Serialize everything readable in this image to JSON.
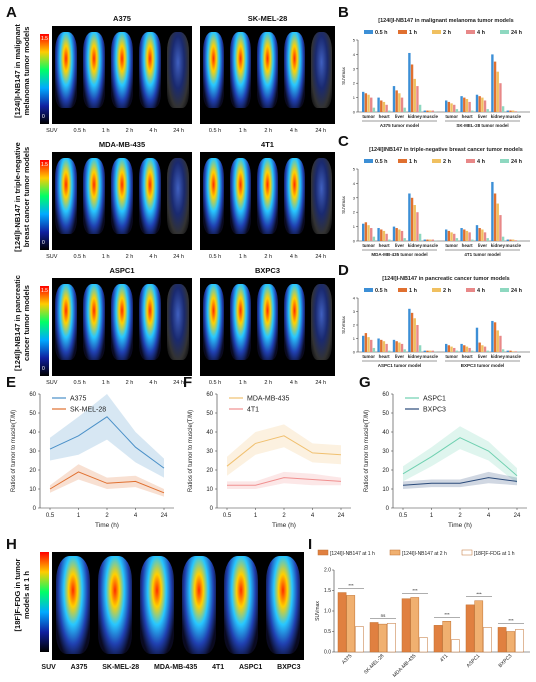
{
  "panels": {
    "A": "A",
    "B": "B",
    "C": "C",
    "D": "D",
    "E": "E",
    "F": "F",
    "G": "G",
    "H": "H",
    "I": "I"
  },
  "pet": {
    "time_labels": [
      "SUV",
      "0.5 h",
      "1 h",
      "2 h",
      "4 h",
      "24 h"
    ],
    "colorbar_max": "1.5",
    "colorbar_min": "0",
    "rows": [
      {
        "vlabel": "[124I]I-NB147 in malignant melanoma tumor models",
        "left": "A375",
        "right": "SK-MEL-28"
      },
      {
        "vlabel": "[124I]I-NB147 in triple-negative breast cancer tumor models",
        "left": "MDA-MB-435",
        "right": "4T1"
      },
      {
        "vlabel": "[124I]I-NB147 in pancreatic cancer tumor models",
        "left": "ASPC1",
        "right": "BXPC3"
      }
    ],
    "h_vlabel": "[18F]F-FDG in tumor models at 1 h",
    "h_labels": [
      "SUV",
      "A375",
      "SK-MEL-28",
      "MDA-MB-435",
      "4T1",
      "ASPC1",
      "BXPC3"
    ]
  },
  "colors": {
    "t05": "#3c8fd6",
    "t1": "#e07030",
    "t2": "#f0c060",
    "t4": "#e88888",
    "t24": "#8ed8c0",
    "navy": "#2a4a7a"
  },
  "chart_data": [
    {
      "id": "B",
      "type": "bar",
      "title": "[124I]I-NB147 in malignant melanoma tumor models",
      "ylabel": "SUVmax",
      "ylim": [
        0,
        5
      ],
      "categories": [
        "tumor",
        "heart",
        "liver",
        "kidney",
        "muscle"
      ],
      "groups": [
        "A375 tumor model",
        "SK-MEL-28 tumor model"
      ],
      "series": [
        {
          "name": "0.5 h",
          "values": [
            [
              1.4,
              1.0,
              1.8,
              4.1,
              0.1
            ],
            [
              0.8,
              1.1,
              1.2,
              4.0,
              0.1
            ]
          ]
        },
        {
          "name": "1 h",
          "values": [
            [
              1.3,
              0.8,
              1.5,
              3.3,
              0.1
            ],
            [
              0.7,
              1.0,
              1.1,
              3.5,
              0.1
            ]
          ]
        },
        {
          "name": "2 h",
          "values": [
            [
              1.2,
              0.7,
              1.3,
              2.3,
              0.1
            ],
            [
              0.6,
              0.9,
              1.0,
              2.8,
              0.1
            ]
          ]
        },
        {
          "name": "4 h",
          "values": [
            [
              1.0,
              0.5,
              1.0,
              1.8,
              0.1
            ],
            [
              0.5,
              0.7,
              0.8,
              2.0,
              0.05
            ]
          ]
        },
        {
          "name": "24 h",
          "values": [
            [
              0.3,
              0.1,
              0.3,
              0.5,
              0.02
            ],
            [
              0.2,
              0.1,
              0.2,
              0.4,
              0.02
            ]
          ]
        }
      ]
    },
    {
      "id": "C",
      "type": "bar",
      "title": "[124I]INB147 in triple-negative breast cancer tumor models",
      "ylabel": "SUVmax",
      "ylim": [
        0,
        5
      ],
      "categories": [
        "tumor",
        "heart",
        "liver",
        "kidney",
        "muscle"
      ],
      "groups": [
        "MDA-MB-435 tumor model",
        "4T1 tumor model"
      ],
      "series": [
        {
          "name": "0.5 h",
          "values": [
            [
              1.2,
              0.9,
              1.0,
              3.3,
              0.1
            ],
            [
              0.8,
              0.9,
              1.1,
              4.1,
              0.1
            ]
          ]
        },
        {
          "name": "1 h",
          "values": [
            [
              1.3,
              0.8,
              0.9,
              3.0,
              0.1
            ],
            [
              0.7,
              0.8,
              0.9,
              3.3,
              0.1
            ]
          ]
        },
        {
          "name": "2 h",
          "values": [
            [
              1.1,
              0.7,
              0.8,
              2.5,
              0.1
            ],
            [
              0.6,
              0.7,
              0.8,
              2.6,
              0.1
            ]
          ]
        },
        {
          "name": "4 h",
          "values": [
            [
              0.9,
              0.5,
              0.7,
              2.0,
              0.1
            ],
            [
              0.5,
              0.6,
              0.6,
              1.8,
              0.05
            ]
          ]
        },
        {
          "name": "24 h",
          "values": [
            [
              0.3,
              0.1,
              0.2,
              0.5,
              0.02
            ],
            [
              0.2,
              0.1,
              0.2,
              0.3,
              0.02
            ]
          ]
        }
      ]
    },
    {
      "id": "D",
      "type": "bar",
      "title": "[124I]I-NB147 in pancreatic cancer tumor models",
      "ylabel": "SUVmax",
      "ylim": [
        0,
        4
      ],
      "categories": [
        "tumor",
        "heart",
        "liver",
        "kidney",
        "muscle"
      ],
      "groups": [
        "ASPC1 tumor model",
        "BXPC3 tumor model"
      ],
      "series": [
        {
          "name": "0.5 h",
          "values": [
            [
              1.2,
              1.0,
              0.9,
              3.2,
              0.1
            ],
            [
              0.6,
              0.6,
              1.8,
              2.3,
              0.1
            ]
          ]
        },
        {
          "name": "1 h",
          "values": [
            [
              1.4,
              0.9,
              0.8,
              2.9,
              0.1
            ],
            [
              0.5,
              0.5,
              0.7,
              2.2,
              0.1
            ]
          ]
        },
        {
          "name": "2 h",
          "values": [
            [
              1.1,
              0.8,
              0.7,
              2.5,
              0.1
            ],
            [
              0.4,
              0.4,
              0.5,
              1.6,
              0.05
            ]
          ]
        },
        {
          "name": "4 h",
          "values": [
            [
              0.9,
              0.6,
              0.6,
              2.0,
              0.1
            ],
            [
              0.3,
              0.3,
              0.4,
              1.2,
              0.05
            ]
          ]
        },
        {
          "name": "24 h",
          "values": [
            [
              0.3,
              0.1,
              0.2,
              0.5,
              0.02
            ],
            [
              0.1,
              0.1,
              0.1,
              0.2,
              0.02
            ]
          ]
        }
      ]
    },
    {
      "id": "E",
      "type": "line",
      "ylabel": "Ratios of tumor to muscle(T/M)",
      "xlabel": "Time (h)",
      "x": [
        "0.5",
        "1",
        "2",
        "4",
        "24"
      ],
      "ylim": [
        0,
        60
      ],
      "yticks": [
        0,
        10,
        20,
        30,
        40,
        50,
        60
      ],
      "series": [
        {
          "name": "A375",
          "values": [
            31,
            38,
            48,
            32,
            21
          ],
          "band": [
            6,
            10,
            12,
            8,
            5
          ]
        },
        {
          "name": "SK-MEL-28",
          "values": [
            10,
            19,
            13,
            14,
            8
          ],
          "band": [
            2,
            4,
            3,
            3,
            2
          ]
        }
      ]
    },
    {
      "id": "F",
      "type": "line",
      "ylabel": "Ratios of tumor to muscle(T/M)",
      "xlabel": "Time (h)",
      "x": [
        "0.5",
        "1",
        "2",
        "4",
        "24"
      ],
      "ylim": [
        0,
        60
      ],
      "yticks": [
        0,
        10,
        20,
        30,
        40,
        50,
        60
      ],
      "series": [
        {
          "name": "MDA-MB-435",
          "values": [
            22,
            34,
            38,
            29,
            28
          ],
          "band": [
            5,
            6,
            6,
            5,
            5
          ]
        },
        {
          "name": "4T1",
          "values": [
            12,
            12,
            16,
            15,
            14
          ],
          "band": [
            2,
            2,
            3,
            3,
            2
          ]
        }
      ]
    },
    {
      "id": "G",
      "type": "line",
      "ylabel": "Ratios of tumor to muscle(T/M)",
      "xlabel": "Time (h)",
      "x": [
        "0.5",
        "1",
        "2",
        "4",
        "24"
      ],
      "ylim": [
        0,
        60
      ],
      "yticks": [
        0,
        10,
        20,
        30,
        40,
        50,
        60
      ],
      "series": [
        {
          "name": "ASPC1",
          "values": [
            18,
            27,
            37,
            30,
            17
          ],
          "band": [
            4,
            5,
            6,
            5,
            4
          ]
        },
        {
          "name": "BXPC3",
          "values": [
            12,
            13,
            13,
            16,
            14
          ],
          "band": [
            2,
            2,
            2,
            3,
            2
          ]
        }
      ]
    },
    {
      "id": "I",
      "type": "bar",
      "ylabel": "SUVmax",
      "ylim": [
        0,
        2.0
      ],
      "yticks": [
        0.0,
        0.5,
        1.0,
        1.5,
        2.0
      ],
      "categories": [
        "A375",
        "SK-MEL-28",
        "MDA-MB-435",
        "4T1",
        "ASPC1",
        "BXPC3"
      ],
      "series": [
        {
          "name": "[124I]I-NB147 at 1 h",
          "values": [
            1.45,
            0.72,
            1.3,
            0.65,
            1.15,
            0.6
          ]
        },
        {
          "name": "[124I]I-NB147 at 2 h",
          "values": [
            1.38,
            0.68,
            1.33,
            0.75,
            1.25,
            0.5
          ]
        },
        {
          "name": "[18F]F-FDG at 1 h",
          "values": [
            0.62,
            0.7,
            0.35,
            0.3,
            0.6,
            0.55
          ]
        }
      ],
      "annotations": [
        "***",
        "ns",
        "*",
        "**"
      ]
    }
  ]
}
